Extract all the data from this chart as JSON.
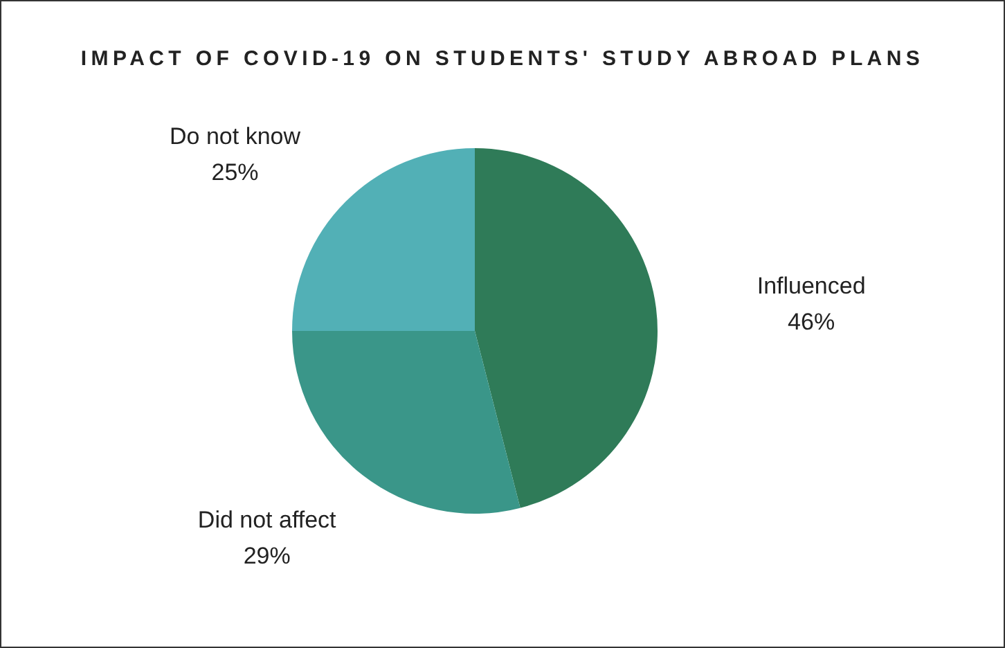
{
  "chart_data": {
    "type": "pie",
    "title": "IMPACT OF COVID-19 ON STUDENTS' STUDY ABROAD PLANS",
    "categories": [
      "Influenced",
      "Did not affect",
      "Do not know"
    ],
    "values": [
      46,
      29,
      25
    ],
    "value_labels": [
      "46%",
      "29%",
      "25%"
    ],
    "colors": [
      "#2f7b58",
      "#3a9689",
      "#52b0b6"
    ],
    "legend": false
  }
}
